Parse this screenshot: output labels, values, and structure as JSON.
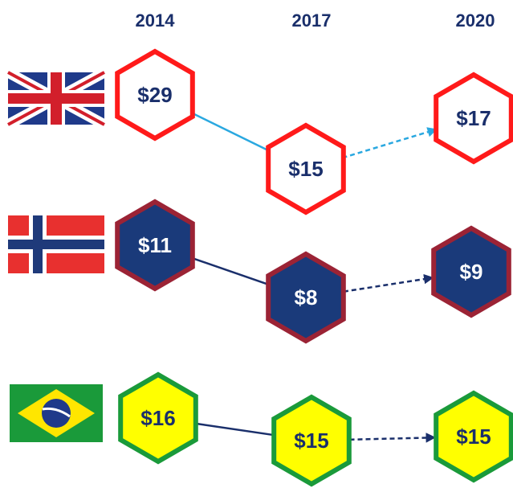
{
  "years": [
    "2014",
    "2017",
    "2020"
  ],
  "rows": [
    {
      "values": [
        "$29",
        "$15",
        "$17"
      ]
    },
    {
      "values": [
        "$11",
        "$8",
        "$9"
      ]
    },
    {
      "values": [
        "$16",
        "$15",
        "$15"
      ]
    }
  ]
}
